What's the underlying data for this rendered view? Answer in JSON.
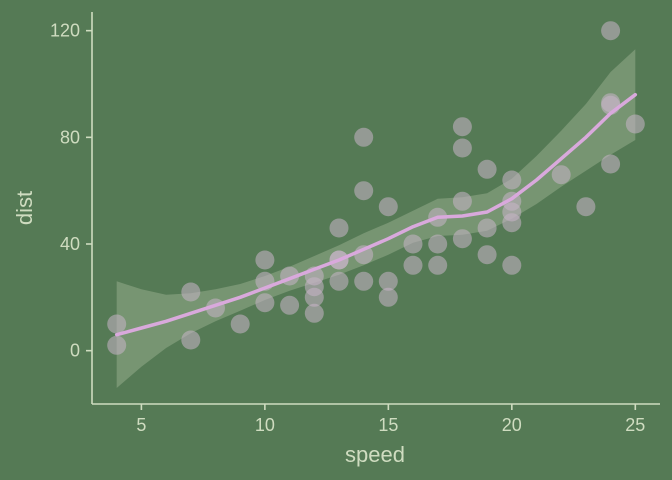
{
  "chart_data": {
    "type": "scatter",
    "xlabel": "speed",
    "ylabel": "dist",
    "xlim": [
      3,
      26
    ],
    "ylim": [
      -20,
      127
    ],
    "x_ticks": [
      5,
      10,
      15,
      20,
      25
    ],
    "y_ticks": [
      0,
      40,
      80,
      120
    ],
    "grid": false,
    "colors": {
      "background": "#557a55",
      "axis": "#cfdcc0",
      "points": "#c8b4c8",
      "smooth_line": "#d9a9dc",
      "confidence_band": "#cfdcc0"
    },
    "points": [
      {
        "x": 4,
        "y": 2
      },
      {
        "x": 4,
        "y": 10
      },
      {
        "x": 7,
        "y": 4
      },
      {
        "x": 7,
        "y": 22
      },
      {
        "x": 8,
        "y": 16
      },
      {
        "x": 9,
        "y": 10
      },
      {
        "x": 10,
        "y": 18
      },
      {
        "x": 10,
        "y": 26
      },
      {
        "x": 10,
        "y": 34
      },
      {
        "x": 11,
        "y": 17
      },
      {
        "x": 11,
        "y": 28
      },
      {
        "x": 12,
        "y": 14
      },
      {
        "x": 12,
        "y": 20
      },
      {
        "x": 12,
        "y": 24
      },
      {
        "x": 12,
        "y": 28
      },
      {
        "x": 13,
        "y": 26
      },
      {
        "x": 13,
        "y": 34
      },
      {
        "x": 13,
        "y": 34
      },
      {
        "x": 13,
        "y": 46
      },
      {
        "x": 14,
        "y": 26
      },
      {
        "x": 14,
        "y": 36
      },
      {
        "x": 14,
        "y": 60
      },
      {
        "x": 14,
        "y": 80
      },
      {
        "x": 15,
        "y": 20
      },
      {
        "x": 15,
        "y": 26
      },
      {
        "x": 15,
        "y": 54
      },
      {
        "x": 16,
        "y": 32
      },
      {
        "x": 16,
        "y": 40
      },
      {
        "x": 17,
        "y": 32
      },
      {
        "x": 17,
        "y": 40
      },
      {
        "x": 17,
        "y": 50
      },
      {
        "x": 18,
        "y": 42
      },
      {
        "x": 18,
        "y": 56
      },
      {
        "x": 18,
        "y": 76
      },
      {
        "x": 18,
        "y": 84
      },
      {
        "x": 19,
        "y": 36
      },
      {
        "x": 19,
        "y": 46
      },
      {
        "x": 19,
        "y": 68
      },
      {
        "x": 20,
        "y": 32
      },
      {
        "x": 20,
        "y": 48
      },
      {
        "x": 20,
        "y": 52
      },
      {
        "x": 20,
        "y": 56
      },
      {
        "x": 20,
        "y": 64
      },
      {
        "x": 22,
        "y": 66
      },
      {
        "x": 23,
        "y": 54
      },
      {
        "x": 24,
        "y": 70
      },
      {
        "x": 24,
        "y": 92
      },
      {
        "x": 24,
        "y": 93
      },
      {
        "x": 24,
        "y": 120
      },
      {
        "x": 25,
        "y": 85
      }
    ],
    "smooth": {
      "x": [
        4,
        5,
        6,
        7,
        8,
        9,
        10,
        11,
        12,
        13,
        14,
        15,
        16,
        17,
        18,
        19,
        20,
        21,
        22,
        23,
        24,
        25
      ],
      "y": [
        6,
        8.5,
        11,
        14,
        17,
        20,
        23.5,
        27,
        30.5,
        34,
        38,
        42,
        46.5,
        50,
        50.5,
        52,
        57,
        64,
        72,
        80,
        89,
        96
      ],
      "lower": [
        -14,
        -6,
        1,
        6.5,
        11,
        15,
        19,
        22.5,
        25.5,
        28.5,
        32,
        36,
        40.5,
        43,
        43.5,
        45,
        49.5,
        55,
        61.5,
        67.5,
        73.5,
        79
      ],
      "upper": [
        26,
        23,
        21,
        21.5,
        23,
        25,
        28,
        31.5,
        35.5,
        39.5,
        44,
        48,
        52.5,
        57,
        57.5,
        59,
        64.5,
        73,
        82.5,
        92.5,
        104.5,
        113
      ]
    }
  }
}
